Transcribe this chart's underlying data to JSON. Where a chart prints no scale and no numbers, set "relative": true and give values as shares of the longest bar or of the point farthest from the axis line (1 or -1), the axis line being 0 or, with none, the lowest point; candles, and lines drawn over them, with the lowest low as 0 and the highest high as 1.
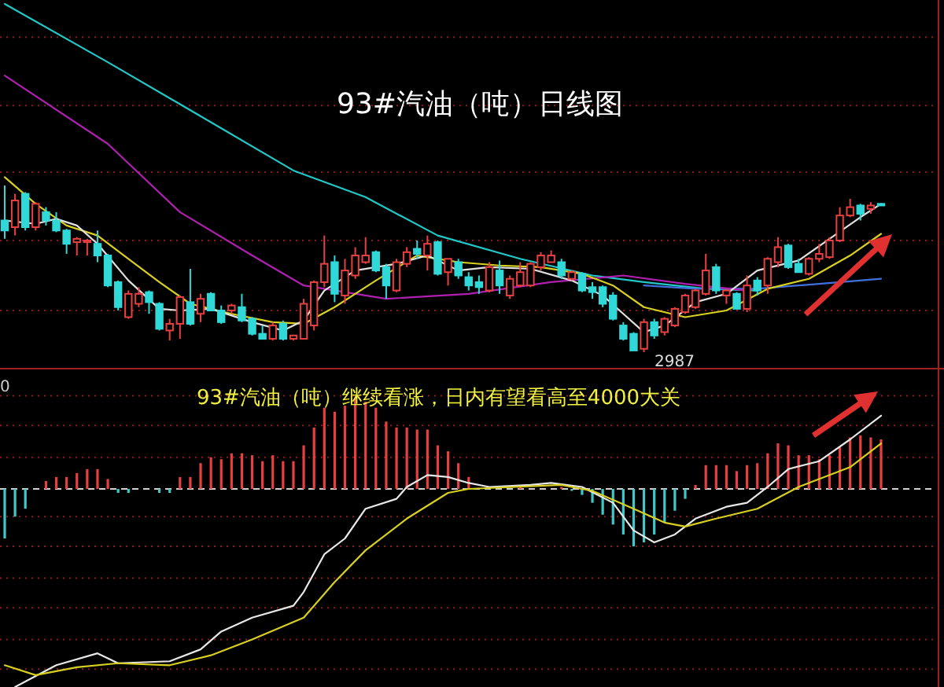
{
  "chart_data": [
    {
      "type": "candlestick",
      "title": "93#汽油（吨）日线图",
      "relative": true,
      "ref_lines": [
        {
          "axis": "y",
          "value": 1.89,
          "color": "#8a1c1c",
          "line_style": "dotted"
        },
        {
          "axis": "y",
          "value": 1.48,
          "color": "#8a1c1c",
          "line_style": "dotted"
        },
        {
          "axis": "y",
          "value": 1.08,
          "color": "#8a1c1c",
          "line_style": "dotted"
        },
        {
          "axis": "y",
          "value": 0.67,
          "color": "#8a1c1c",
          "line_style": "dotted"
        },
        {
          "axis": "y",
          "value": 0.25,
          "color": "#8a1c1c",
          "line_style": "dotted"
        }
      ],
      "categories": [
        null,
        null,
        null,
        null,
        null,
        null,
        null,
        null,
        null,
        null,
        null,
        null,
        null,
        null,
        null,
        null,
        null,
        null,
        null,
        null,
        null,
        null,
        null,
        null,
        null,
        null,
        null,
        null,
        null,
        null,
        null,
        null,
        null,
        null,
        null,
        null,
        null,
        null,
        null,
        null,
        null,
        null,
        null,
        null,
        null,
        null,
        null,
        null,
        null,
        null,
        null,
        null,
        null,
        null,
        null,
        null,
        null,
        null,
        null,
        null,
        null,
        null,
        null,
        null,
        null,
        null,
        null,
        null,
        null,
        null,
        null,
        null,
        null,
        null,
        null,
        null,
        null,
        null,
        null,
        null,
        null,
        null,
        null,
        null,
        null,
        null
      ],
      "ohlc": [
        [
          0.79,
          1.0,
          0.68,
          0.73
        ],
        [
          0.75,
          0.95,
          0.7,
          0.91
        ],
        [
          0.95,
          0.96,
          0.73,
          0.75
        ],
        [
          0.75,
          0.9,
          0.73,
          0.89
        ],
        [
          0.84,
          0.87,
          0.76,
          0.79
        ],
        [
          0.79,
          0.84,
          0.72,
          0.73
        ],
        [
          0.73,
          0.74,
          0.59,
          0.65
        ],
        [
          0.66,
          0.69,
          0.58,
          0.68
        ],
        [
          0.66,
          0.68,
          0.58,
          0.67
        ],
        [
          0.65,
          0.73,
          0.54,
          0.58
        ],
        [
          0.58,
          0.59,
          0.39,
          0.4
        ],
        [
          0.42,
          0.43,
          0.25,
          0.27
        ],
        [
          0.21,
          0.37,
          0.2,
          0.35
        ],
        [
          0.29,
          0.39,
          0.27,
          0.35
        ],
        [
          0.36,
          0.37,
          0.23,
          0.3
        ],
        [
          0.29,
          0.3,
          0.13,
          0.14
        ],
        [
          0.13,
          0.2,
          0.07,
          0.17
        ],
        [
          0.17,
          0.34,
          0.08,
          0.33
        ],
        [
          0.3,
          0.5,
          0.16,
          0.17
        ],
        [
          0.23,
          0.35,
          0.18,
          0.32
        ],
        [
          0.35,
          0.36,
          0.25,
          0.25
        ],
        [
          0.25,
          0.28,
          0.17,
          0.18
        ],
        [
          0.25,
          0.29,
          0.23,
          0.28
        ],
        [
          0.27,
          0.35,
          0.18,
          0.19
        ],
        [
          0.2,
          0.21,
          0.1,
          0.11
        ],
        [
          0.11,
          0.16,
          0.08,
          0.08
        ],
        [
          0.08,
          0.18,
          0.07,
          0.16
        ],
        [
          0.17,
          0.19,
          0.07,
          0.08
        ],
        [
          0.08,
          0.1,
          0.07,
          0.1
        ],
        [
          0.08,
          0.32,
          0.08,
          0.29
        ],
        [
          0.16,
          0.43,
          0.13,
          0.42
        ],
        [
          0.42,
          0.7,
          0.39,
          0.53
        ],
        [
          0.54,
          0.58,
          0.3,
          0.35
        ],
        [
          0.34,
          0.56,
          0.29,
          0.49
        ],
        [
          0.46,
          0.63,
          0.44,
          0.58
        ],
        [
          0.54,
          0.69,
          0.53,
          0.58
        ],
        [
          0.6,
          0.61,
          0.48,
          0.49
        ],
        [
          0.51,
          0.53,
          0.32,
          0.4
        ],
        [
          0.37,
          0.56,
          0.36,
          0.54
        ],
        [
          0.53,
          0.63,
          0.51,
          0.6
        ],
        [
          0.62,
          0.67,
          0.56,
          0.59
        ],
        [
          0.58,
          0.7,
          0.49,
          0.65
        ],
        [
          0.66,
          0.67,
          0.46,
          0.47
        ],
        [
          0.48,
          0.56,
          0.4,
          0.56
        ],
        [
          0.54,
          0.56,
          0.44,
          0.46
        ],
        [
          0.45,
          0.48,
          0.37,
          0.4
        ],
        [
          0.42,
          0.46,
          0.35,
          0.39
        ],
        [
          0.37,
          0.54,
          0.36,
          0.51
        ],
        [
          0.49,
          0.55,
          0.35,
          0.4
        ],
        [
          0.34,
          0.46,
          0.32,
          0.44
        ],
        [
          0.4,
          0.54,
          0.39,
          0.48
        ],
        [
          0.4,
          0.54,
          0.39,
          0.53
        ],
        [
          0.51,
          0.6,
          0.49,
          0.58
        ],
        [
          0.54,
          0.61,
          0.54,
          0.58
        ],
        [
          0.54,
          0.56,
          0.44,
          0.46
        ],
        [
          0.44,
          0.49,
          0.43,
          0.48
        ],
        [
          0.47,
          0.48,
          0.36,
          0.37
        ],
        [
          0.39,
          0.42,
          0.32,
          0.36
        ],
        [
          0.39,
          0.4,
          0.27,
          0.29
        ],
        [
          0.34,
          0.36,
          0.19,
          0.2
        ],
        [
          0.16,
          0.18,
          0.07,
          0.08
        ],
        [
          0.11,
          0.12,
          0.01,
          0.01
        ],
        [
          0.02,
          0.2,
          0.0,
          0.18
        ],
        [
          0.18,
          0.2,
          0.08,
          0.1
        ],
        [
          0.12,
          0.21,
          0.1,
          0.2
        ],
        [
          0.16,
          0.27,
          0.15,
          0.26
        ],
        [
          0.24,
          0.35,
          0.23,
          0.34
        ],
        [
          0.27,
          0.38,
          0.26,
          0.37
        ],
        [
          0.35,
          0.59,
          0.34,
          0.49
        ],
        [
          0.51,
          0.53,
          0.35,
          0.37
        ],
        [
          0.34,
          0.38,
          0.29,
          0.37
        ],
        [
          0.35,
          0.36,
          0.26,
          0.26
        ],
        [
          0.26,
          0.46,
          0.24,
          0.4
        ],
        [
          0.43,
          0.45,
          0.34,
          0.37
        ],
        [
          0.4,
          0.57,
          0.35,
          0.56
        ],
        [
          0.54,
          0.69,
          0.51,
          0.63
        ],
        [
          0.64,
          0.65,
          0.5,
          0.51
        ],
        [
          0.53,
          0.56,
          0.48,
          0.48
        ],
        [
          0.47,
          0.57,
          0.46,
          0.56
        ],
        [
          0.56,
          0.65,
          0.54,
          0.59
        ],
        [
          0.57,
          0.69,
          0.56,
          0.67
        ],
        [
          0.67,
          0.87,
          0.66,
          0.82
        ],
        [
          0.82,
          0.92,
          0.81,
          0.87
        ],
        [
          0.88,
          0.89,
          0.79,
          0.83
        ],
        [
          0.86,
          0.9,
          0.83,
          0.88
        ],
        [
          0.89,
          0.89,
          0.88,
          0.88
        ]
      ],
      "series": [
        {
          "type": "line",
          "color": "#20c8c8",
          "values": [
            2.09,
            null,
            null,
            null,
            null,
            null,
            null,
            null,
            null,
            null,
            1.74,
            null,
            null,
            null,
            null,
            null,
            null,
            null,
            null,
            null,
            1.38,
            null,
            null,
            null,
            null,
            null,
            null,
            null,
            1.09,
            null,
            null,
            null,
            null,
            null,
            null,
            0.93,
            null,
            null,
            null,
            null,
            null,
            null,
            0.7,
            null,
            null,
            null,
            null,
            null,
            null,
            null,
            0.56,
            null,
            null,
            null,
            null,
            null,
            null,
            0.46,
            null,
            null,
            null,
            null,
            0.42,
            null,
            null,
            null,
            null,
            null,
            0.38,
            null,
            null,
            null,
            null,
            0.37,
            null,
            null,
            null,
            null,
            null,
            null,
            null,
            null,
            null,
            null,
            null,
            null
          ]
        },
        {
          "type": "line",
          "color": "#4070e0",
          "values": [
            null,
            null,
            null,
            null,
            null,
            null,
            null,
            null,
            null,
            null,
            null,
            null,
            null,
            null,
            null,
            null,
            null,
            null,
            null,
            null,
            null,
            null,
            null,
            null,
            null,
            null,
            null,
            null,
            null,
            null,
            null,
            null,
            null,
            null,
            null,
            null,
            null,
            null,
            null,
            null,
            null,
            null,
            null,
            null,
            null,
            null,
            null,
            null,
            null,
            null,
            null,
            null,
            null,
            null,
            null,
            null,
            null,
            null,
            null,
            null,
            null,
            null,
            0.4,
            null,
            null,
            null,
            null,
            0.38,
            null,
            null,
            null,
            null,
            null,
            0.38,
            null,
            null,
            null,
            null,
            null,
            0.41,
            null,
            null,
            null,
            null,
            null,
            0.44
          ]
        },
        {
          "type": "line",
          "color": "#b020b0",
          "values": [
            1.66,
            null,
            null,
            null,
            null,
            null,
            null,
            null,
            null,
            null,
            1.25,
            null,
            null,
            null,
            null,
            null,
            null,
            0.84,
            null,
            null,
            null,
            null,
            null,
            null,
            0.58,
            null,
            null,
            null,
            null,
            0.4,
            null,
            null,
            null,
            null,
            null,
            null,
            null,
            0.32,
            null,
            null,
            null,
            null,
            null,
            null,
            null,
            0.35,
            null,
            null,
            null,
            null,
            null,
            null,
            null,
            0.42,
            null,
            null,
            null,
            null,
            null,
            null,
            0.46,
            null,
            null,
            null,
            null,
            null,
            0.41,
            null,
            null,
            null,
            null,
            null,
            0.37,
            null,
            null,
            null,
            null,
            null,
            null,
            null,
            null,
            null,
            null,
            null,
            null,
            null
          ]
        },
        {
          "type": "line",
          "color": "#d8d020",
          "values": [
            1.05,
            null,
            null,
            0.89,
            null,
            null,
            0.76,
            null,
            null,
            0.7,
            null,
            null,
            0.56,
            null,
            null,
            0.42,
            null,
            null,
            0.29,
            null,
            null,
            null,
            0.23,
            null,
            null,
            null,
            0.18,
            null,
            null,
            0.17,
            null,
            null,
            0.27,
            null,
            null,
            null,
            0.43,
            null,
            null,
            null,
            0.58,
            null,
            null,
            null,
            0.54,
            null,
            null,
            null,
            0.52,
            null,
            null,
            null,
            0.51,
            null,
            null,
            null,
            0.47,
            null,
            null,
            0.4,
            null,
            null,
            0.27,
            null,
            null,
            null,
            0.21,
            null,
            null,
            null,
            0.25,
            null,
            null,
            null,
            0.38,
            null,
            null,
            null,
            0.44,
            null,
            null,
            null,
            0.58,
            null,
            null,
            0.71
          ]
        },
        {
          "type": "line",
          "color": "#e0e0e0",
          "values": [
            0.79,
            null,
            null,
            0.77,
            null,
            0.8,
            null,
            0.76,
            null,
            0.65,
            null,
            null,
            0.43,
            null,
            null,
            0.26,
            null,
            0.25,
            null,
            null,
            0.26,
            null,
            null,
            null,
            0.18,
            null,
            null,
            0.13,
            null,
            0.19,
            null,
            0.37,
            null,
            null,
            0.49,
            null,
            null,
            null,
            0.53,
            null,
            null,
            0.58,
            null,
            null,
            0.49,
            null,
            null,
            0.51,
            null,
            null,
            null,
            0.5,
            null,
            null,
            null,
            0.43,
            null,
            null,
            0.34,
            null,
            0.23,
            null,
            0.12,
            null,
            0.16,
            null,
            null,
            0.3,
            null,
            null,
            0.35,
            null,
            null,
            0.49,
            null,
            null,
            null,
            0.55,
            null,
            null,
            0.68,
            null,
            null,
            0.81,
            null,
            0.89
          ]
        }
      ],
      "annotations": [
        "2987"
      ]
    },
    {
      "type": "bar",
      "relative": true,
      "ref_lines": [
        {
          "axis": "y",
          "value": 0.47,
          "color": "#8a1c1c",
          "line_style": "dotted"
        },
        {
          "axis": "y",
          "value": 0.32,
          "color": "#8a1c1c",
          "line_style": "dotted"
        },
        {
          "axis": "y",
          "value": 0.16,
          "color": "#8a1c1c",
          "line_style": "dotted"
        },
        {
          "axis": "y",
          "value": 0,
          "color": "#d0d0d0",
          "line_style": "dashed"
        },
        {
          "axis": "y",
          "value": -0.14,
          "color": "#8a1c1c",
          "line_style": "dotted"
        },
        {
          "axis": "y",
          "value": -0.29,
          "color": "#8a1c1c",
          "line_style": "dotted"
        },
        {
          "axis": "y",
          "value": -0.45,
          "color": "#8a1c1c",
          "line_style": "dotted"
        },
        {
          "axis": "y",
          "value": -0.6,
          "color": "#8a1c1c",
          "line_style": "dotted"
        },
        {
          "axis": "y",
          "value": -0.76,
          "color": "#8a1c1c",
          "line_style": "dotted"
        },
        {
          "axis": "y",
          "value": -0.91,
          "color": "#8a1c1c",
          "line_style": "dotted"
        }
      ],
      "categories": [
        null,
        null,
        null,
        null,
        null,
        null,
        null,
        null,
        null,
        null,
        null,
        null,
        null,
        null,
        null,
        null,
        null,
        null,
        null,
        null,
        null,
        null,
        null,
        null,
        null,
        null,
        null,
        null,
        null,
        null,
        null,
        null,
        null,
        null,
        null,
        null,
        null,
        null,
        null,
        null,
        null,
        null,
        null,
        null,
        null,
        null,
        null,
        null,
        null,
        null,
        null,
        null,
        null,
        null,
        null,
        null,
        null,
        null,
        null,
        null,
        null,
        null,
        null,
        null,
        null,
        null,
        null,
        null,
        null,
        null,
        null,
        null,
        null,
        null,
        null,
        null,
        null,
        null,
        null,
        null,
        null,
        null,
        null,
        null,
        null,
        null
      ],
      "values": [
        -0.25,
        -0.14,
        -0.1,
        null,
        0.04,
        0.06,
        0.06,
        0.08,
        0.1,
        0.1,
        0.05,
        -0.02,
        -0.02,
        null,
        null,
        -0.02,
        -0.02,
        0.06,
        0.06,
        0.13,
        0.16,
        0.15,
        0.18,
        0.18,
        0.17,
        0.14,
        0.17,
        0.14,
        0.14,
        0.22,
        0.31,
        0.41,
        0.39,
        0.42,
        0.46,
        0.44,
        0.41,
        0.34,
        0.31,
        0.31,
        0.3,
        0.3,
        0.22,
        0.19,
        0.13,
        0.06,
        null,
        null,
        null,
        null,
        0.01,
        null,
        null,
        null,
        0.01,
        -0.01,
        -0.03,
        -0.07,
        -0.13,
        -0.18,
        -0.23,
        -0.29,
        -0.27,
        -0.23,
        -0.17,
        -0.11,
        -0.05,
        0.02,
        0.12,
        0.12,
        0.12,
        0.09,
        0.12,
        0.13,
        0.18,
        0.23,
        0.22,
        0.17,
        0.17,
        0.15,
        0.17,
        0.21,
        0.26,
        0.27,
        0.26,
        0.25
      ],
      "colors": [
        "#40c8c8",
        "#40c8c8",
        "#40c8c8",
        null,
        "#e84040",
        "#e84040",
        "#e84040",
        "#e84040",
        "#e84040",
        "#e84040",
        "#e84040",
        "#40c8c8",
        "#40c8c8",
        null,
        null,
        "#40c8c8",
        "#40c8c8",
        "#e84040",
        "#e84040",
        "#e84040",
        "#e84040",
        "#e84040",
        "#e84040",
        "#e84040",
        "#e84040",
        "#e84040",
        "#e84040",
        "#e84040",
        "#e84040",
        "#e84040",
        "#e84040",
        "#e84040",
        "#e84040",
        "#e84040",
        "#e84040",
        "#e84040",
        "#e84040",
        "#e84040",
        "#e84040",
        "#e84040",
        "#e84040",
        "#e84040",
        "#e84040",
        "#e84040",
        "#e84040",
        "#e84040",
        null,
        null,
        null,
        null,
        "#e84040",
        null,
        null,
        null,
        "#e84040",
        "#40c8c8",
        "#40c8c8",
        "#40c8c8",
        "#40c8c8",
        "#40c8c8",
        "#40c8c8",
        "#40c8c8",
        "#40c8c8",
        "#40c8c8",
        "#40c8c8",
        "#40c8c8",
        "#40c8c8",
        "#e84040",
        "#e84040",
        "#e84040",
        "#e84040",
        "#e84040",
        "#e84040",
        "#e84040",
        "#e84040",
        "#e84040",
        "#e84040",
        "#e84040",
        "#e84040",
        "#e84040",
        "#e84040",
        "#e84040",
        "#e84040",
        "#e84040",
        "#e84040",
        "#e84040"
      ],
      "series": [
        {
          "type": "line",
          "color": "#e8e8e8",
          "values": [
            null,
            -1.0,
            null,
            null,
            null,
            -0.89,
            null,
            null,
            null,
            -0.83,
            null,
            -0.88,
            null,
            null,
            null,
            null,
            -0.87,
            null,
            null,
            -0.81,
            null,
            -0.72,
            null,
            null,
            -0.65,
            null,
            null,
            null,
            -0.59,
            -0.52,
            null,
            -0.33,
            null,
            -0.25,
            null,
            -0.1,
            null,
            null,
            -0.05,
            0.01,
            null,
            0.07,
            null,
            0.06,
            null,
            0.03,
            null,
            0.01,
            null,
            null,
            null,
            0.02,
            null,
            0.03,
            null,
            null,
            0.01,
            null,
            null,
            -0.07,
            null,
            -0.21,
            null,
            -0.27,
            null,
            -0.23,
            null,
            -0.15,
            null,
            null,
            -0.09,
            null,
            -0.07,
            null,
            0.01,
            null,
            0.1,
            null,
            null,
            0.14,
            null,
            null,
            0.25,
            null,
            null,
            0.37
          ]
        },
        {
          "type": "line",
          "color": "#d8d020",
          "values": [
            -0.89,
            null,
            null,
            -0.94,
            null,
            null,
            null,
            -0.9,
            null,
            null,
            null,
            -0.88,
            null,
            null,
            null,
            null,
            -0.89,
            null,
            null,
            null,
            -0.84,
            null,
            null,
            null,
            -0.76,
            null,
            null,
            null,
            null,
            -0.65,
            null,
            null,
            -0.47,
            null,
            null,
            -0.31,
            null,
            null,
            null,
            -0.15,
            null,
            null,
            null,
            -0.02,
            null,
            0.0,
            null,
            null,
            null,
            null,
            null,
            null,
            null,
            null,
            0.02,
            null,
            null,
            -0.01,
            null,
            null,
            null,
            -0.1,
            null,
            null,
            -0.17,
            null,
            -0.19,
            null,
            null,
            -0.15,
            null,
            null,
            null,
            -0.1,
            null,
            null,
            null,
            0.01,
            null,
            null,
            null,
            null,
            0.11,
            null,
            null,
            0.23
          ]
        }
      ],
      "annotations": [
        "93#汽油（吨）继续看涨，日内有望看高至4000大关",
        "0"
      ]
    }
  ]
}
